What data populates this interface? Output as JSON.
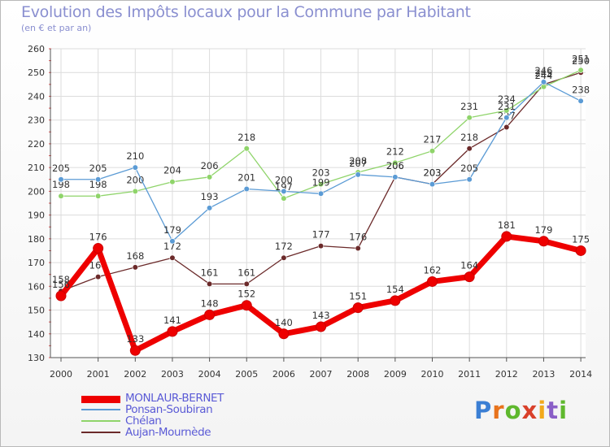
{
  "chart_data": {
    "type": "line",
    "title": "Evolution des Impôts locaux pour la Commune par Habitant",
    "subtitle": "(en € et par an)",
    "xlabel": "",
    "ylabel": "",
    "ylim": [
      130,
      260
    ],
    "yticks": [
      130,
      140,
      150,
      160,
      170,
      180,
      190,
      200,
      210,
      220,
      230,
      240,
      250,
      260
    ],
    "grid": true,
    "legend_position": "bottom-left",
    "categories": [
      "2000",
      "2001",
      "2002",
      "2003",
      "2004",
      "2005",
      "2006",
      "2007",
      "2008",
      "2009",
      "2010",
      "2011",
      "2012",
      "2013",
      "2014"
    ],
    "series": [
      {
        "name": "MONLAUR-BERNET",
        "color": "#ee0000",
        "values": [
          156,
          176,
          133,
          141,
          148,
          152,
          140,
          143,
          151,
          154,
          162,
          164,
          181,
          179,
          175
        ]
      },
      {
        "name": "Ponsan-Soubiran",
        "color": "#5b9bd5",
        "values": [
          205,
          205,
          210,
          179,
          193,
          201,
          200,
          199,
          207,
          206,
          203,
          205,
          231,
          246,
          238
        ]
      },
      {
        "name": "Chélan",
        "color": "#8fd46a",
        "values": [
          198,
          198,
          200,
          204,
          206,
          218,
          197,
          203,
          208,
          212,
          217,
          231,
          234,
          244,
          251
        ]
      },
      {
        "name": "Aujan-Mournède",
        "color": "#6b2a2a",
        "values": [
          158,
          164,
          168,
          172,
          161,
          161,
          172,
          177,
          176,
          206,
          203,
          218,
          227,
          245,
          250
        ]
      }
    ]
  }
}
